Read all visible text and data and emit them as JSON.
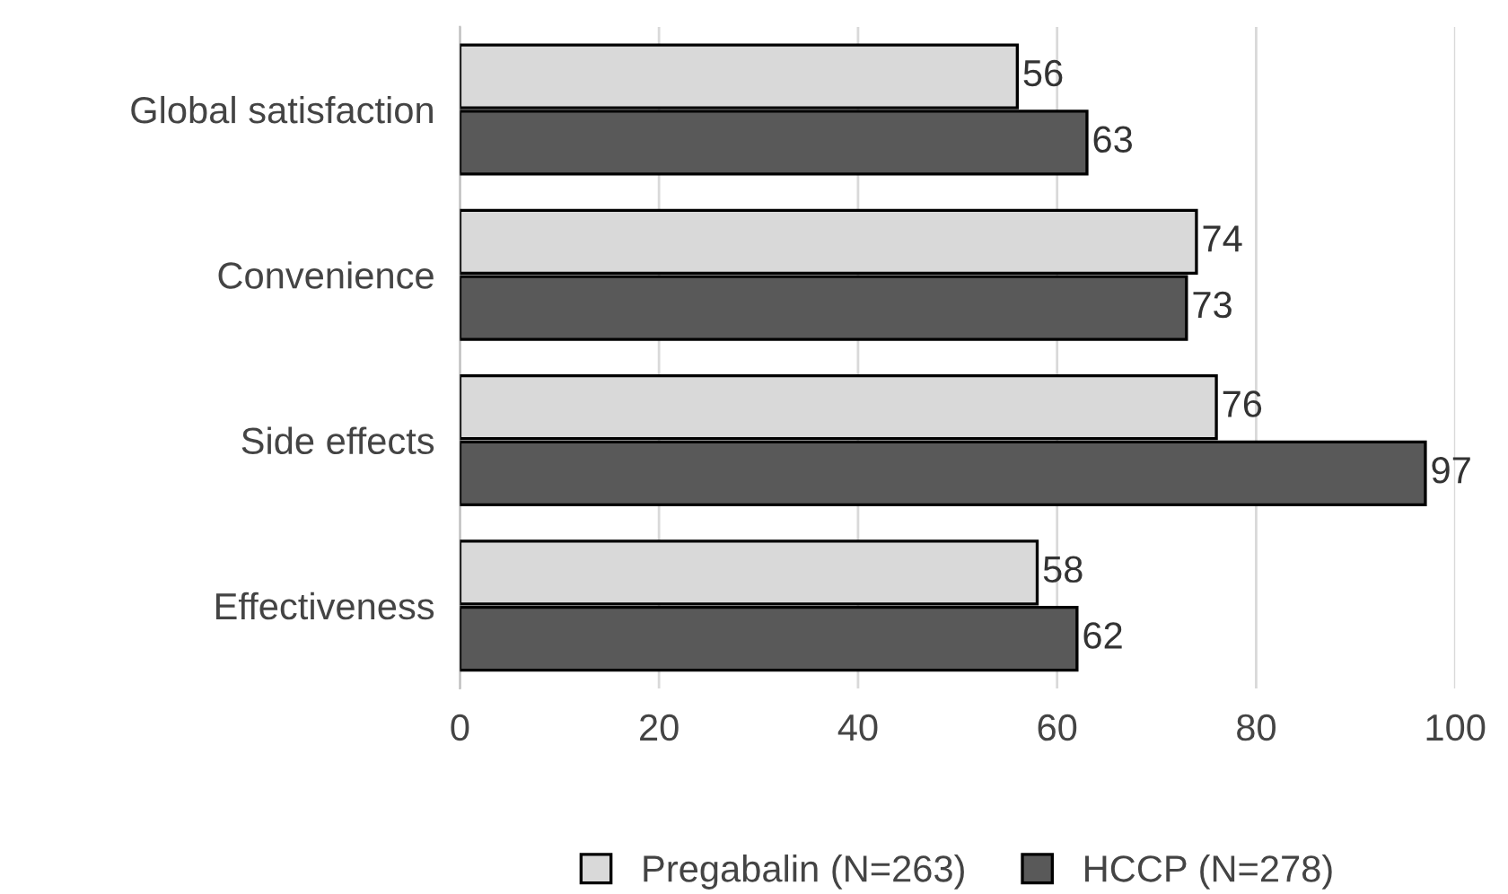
{
  "chart_data": {
    "type": "bar",
    "orientation": "horizontal",
    "categories": [
      "Global satisfaction",
      "Convenience",
      "Side effects",
      "Effectiveness"
    ],
    "series": [
      {
        "name": "Pregabalin (N=263)",
        "color": "#d9d9d9",
        "values": [
          56,
          74,
          76,
          58
        ]
      },
      {
        "name": "HCCP (N=278)",
        "color": "#595959",
        "values": [
          63,
          73,
          97,
          62
        ]
      }
    ],
    "xlim": [
      0,
      100
    ],
    "xticks": [
      0,
      20,
      40,
      60,
      80,
      100
    ],
    "grid": "x",
    "legend": "bottom",
    "data_labels": true
  }
}
